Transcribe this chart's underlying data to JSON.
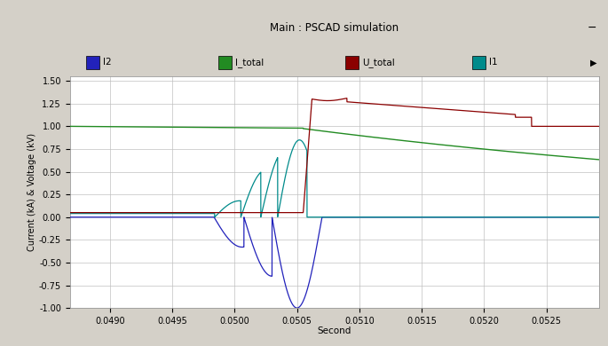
{
  "title": "Main : PSCAD simulation",
  "xlabel": "Second",
  "ylabel": "Current (kA) & Voltage (kV)",
  "xlim": [
    0.04868,
    0.05292
  ],
  "ylim": [
    -1.0,
    1.55
  ],
  "yticks": [
    -1.0,
    -0.75,
    -0.5,
    -0.25,
    0.0,
    0.25,
    0.5,
    0.75,
    1.0,
    1.25,
    1.5
  ],
  "xticks": [
    0.049,
    0.0495,
    0.05,
    0.0505,
    0.051,
    0.0515,
    0.052,
    0.0525
  ],
  "legend_labels": [
    "I2",
    "I_total",
    "U_total",
    "I1"
  ],
  "legend_colors": [
    "#2222bb",
    "#228B22",
    "#8B0000",
    "#008B8B"
  ],
  "colors": {
    "I2": "#2222bb",
    "I_total": "#228B22",
    "U_total": "#8B0000",
    "I1": "#008B8B"
  },
  "fig_bg": "#d4d0c8",
  "header_bg": "#d4d0c8",
  "plot_bg": "#ffffff",
  "grid_color": "#c0c0c0",
  "title_bar_bg": "#d4d0c8"
}
